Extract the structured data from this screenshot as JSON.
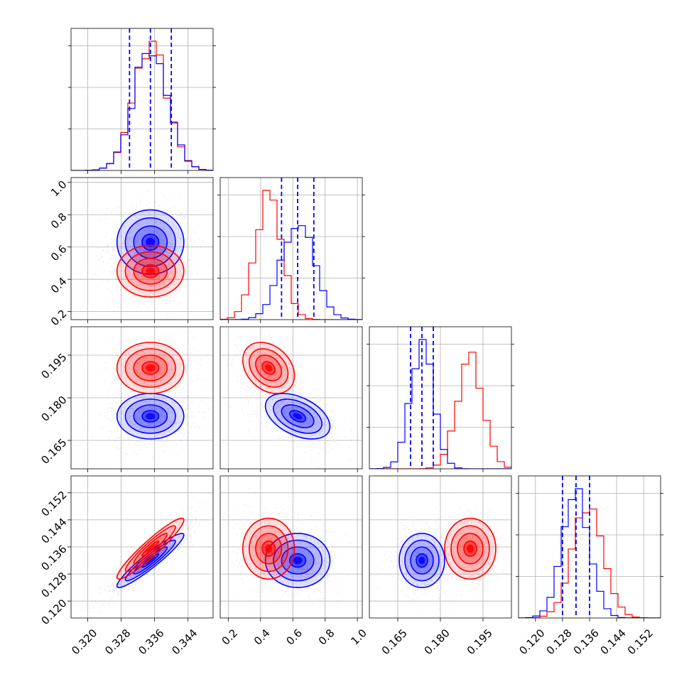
{
  "colors": {
    "red": "#ff0000",
    "blue": "#0000ff"
  },
  "chart_data": {
    "type": "corner",
    "grid": true,
    "parameters": [
      {
        "range": [
          0.316,
          0.35
        ],
        "ticks": [
          "0.320",
          "0.328",
          "0.336",
          "0.344"
        ]
      },
      {
        "range": [
          0.15,
          1.03
        ],
        "ticks": [
          "0.2",
          "0.4",
          "0.6",
          "0.8",
          "1.0"
        ]
      },
      {
        "range": [
          0.155,
          0.205
        ],
        "ticks": [
          "0.165",
          "0.180",
          "0.195"
        ]
      },
      {
        "range": [
          0.115,
          0.157
        ],
        "ticks": [
          "0.120",
          "0.128",
          "0.136",
          "0.144",
          "0.152"
        ]
      }
    ],
    "series": [
      {
        "color": "red",
        "means": [
          0.335,
          0.45,
          0.1905,
          0.1355
        ],
        "sds": [
          0.004,
          0.08,
          0.0045,
          0.0045
        ]
      },
      {
        "color": "blue",
        "means": [
          0.335,
          0.63,
          0.1735,
          0.132
        ],
        "sds": [
          0.004,
          0.1,
          0.004,
          0.004
        ]
      }
    ],
    "correlations": [
      {
        "pair": [
          0,
          3
        ],
        "red": 0.94,
        "blue": 0.94
      },
      {
        "pair": [
          1,
          2
        ],
        "red": -0.3,
        "blue": -0.45
      }
    ],
    "quantiles": {
      "color": "blue",
      "values": [
        [
          0.33,
          0.335,
          0.34
        ],
        [
          0.53,
          0.63,
          0.73
        ],
        [
          0.1695,
          0.1735,
          0.1775
        ],
        [
          0.128,
          0.132,
          0.136
        ]
      ]
    }
  }
}
